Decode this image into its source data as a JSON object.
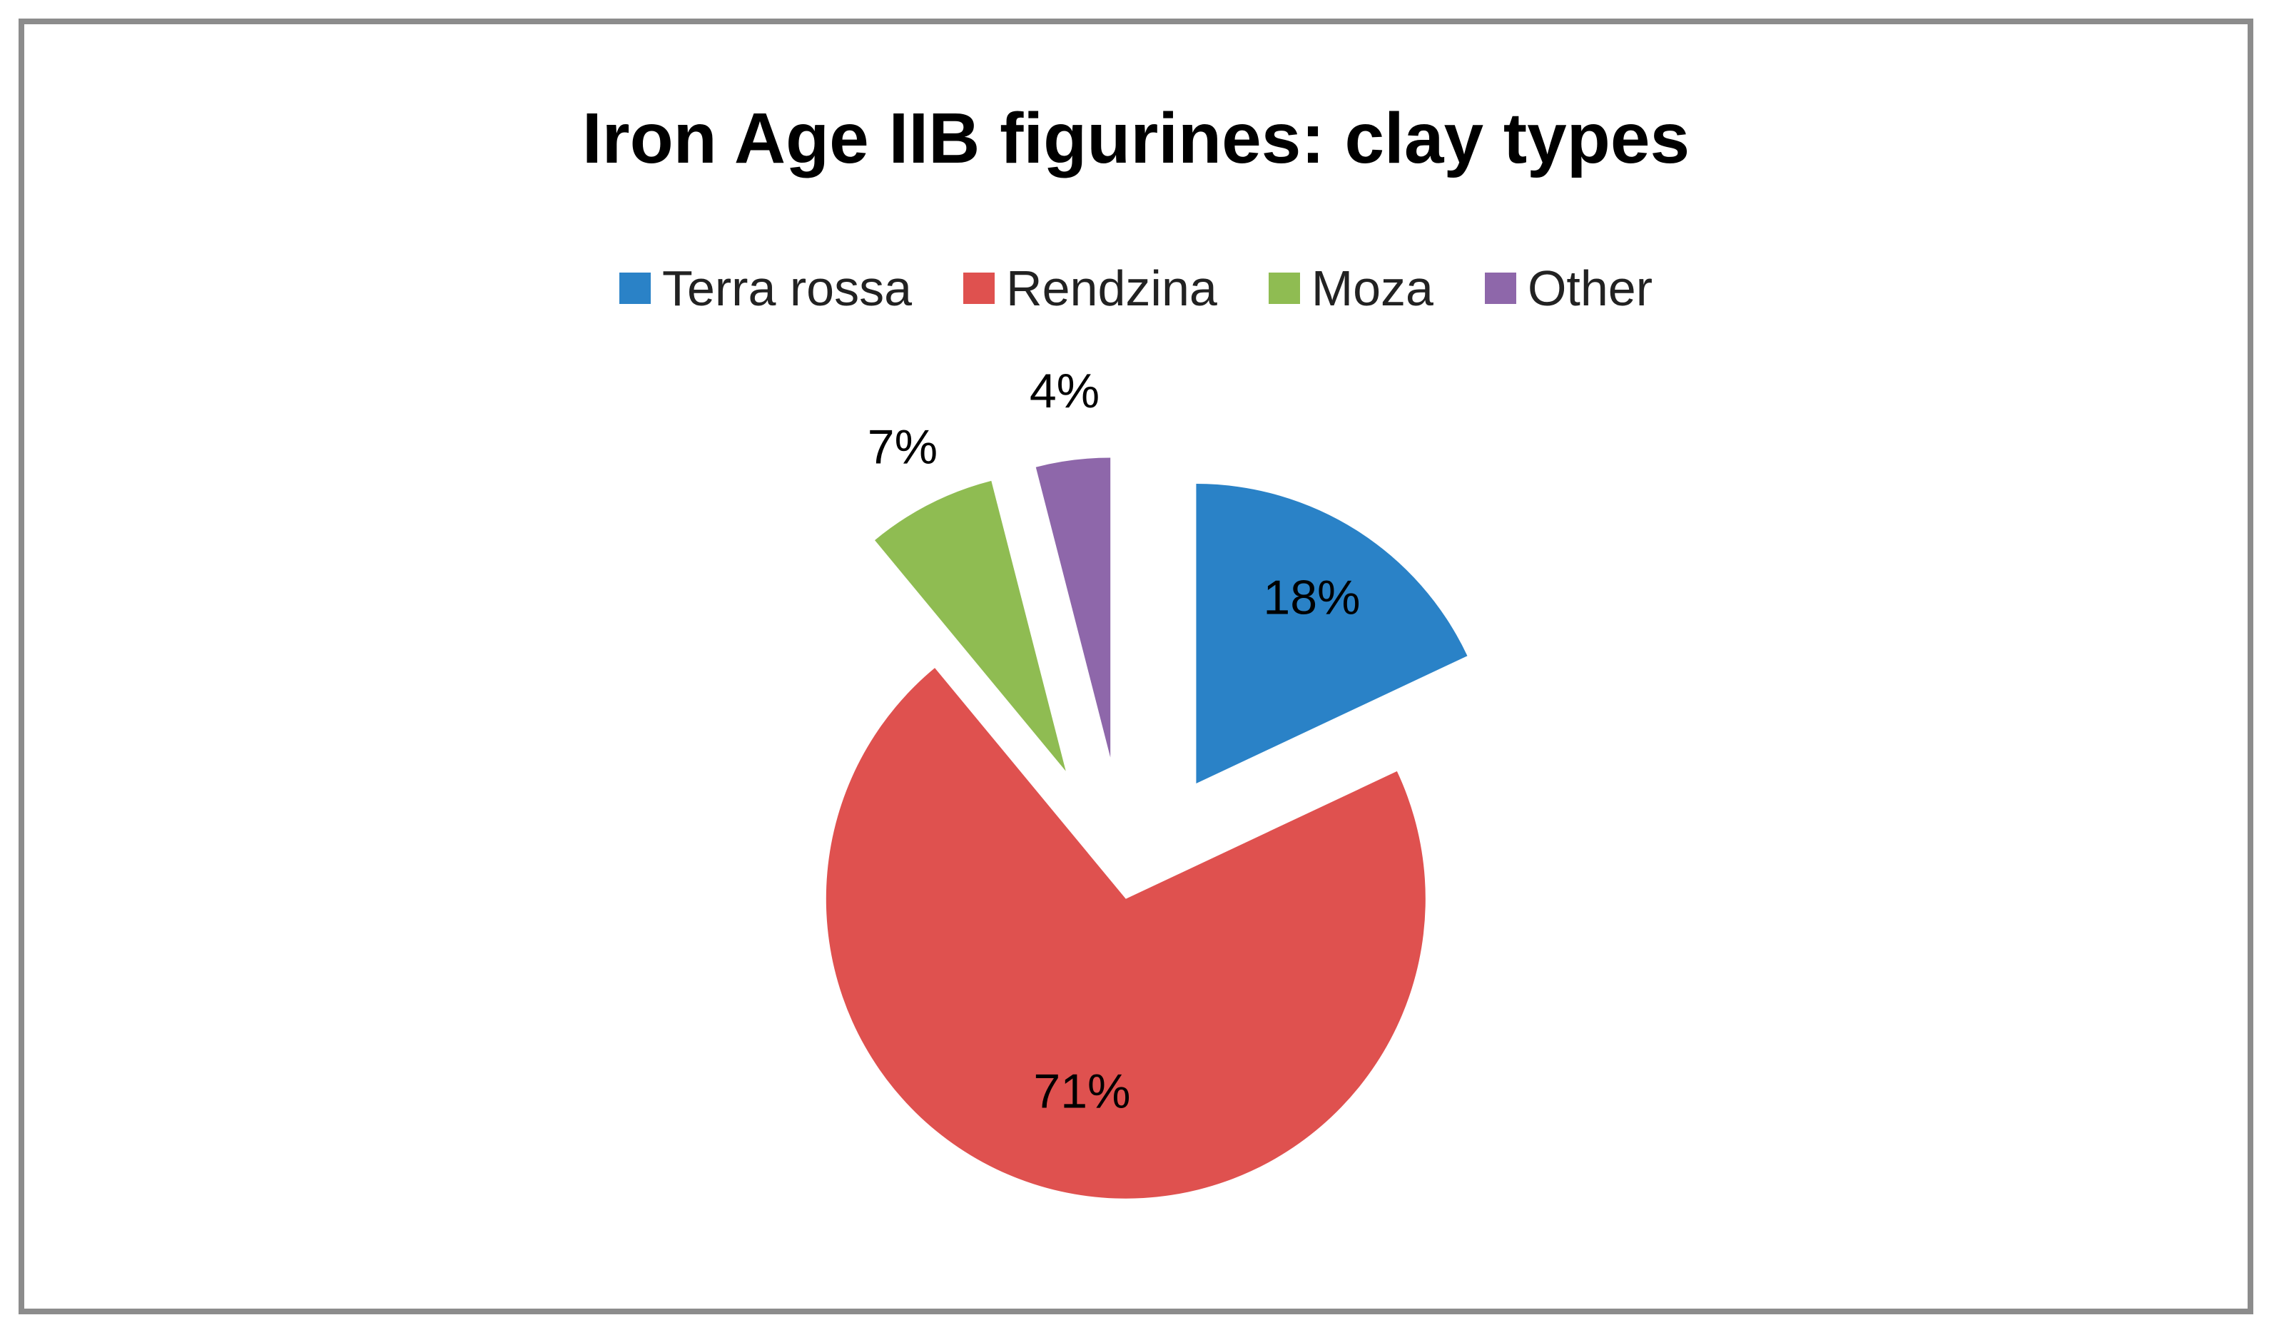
{
  "chart_data": {
    "type": "pie",
    "title": "Iron Age IIB figurines: clay types",
    "legend_position": "top",
    "exploded": true,
    "slices": [
      {
        "name": "Terra rossa",
        "value": 18,
        "label": "18%",
        "color": "#2a82c7"
      },
      {
        "name": "Rendzina",
        "value": 71,
        "label": "71%",
        "color": "#df514f"
      },
      {
        "name": "Moza",
        "value": 7,
        "label": "7%",
        "color": "#8fbc52"
      },
      {
        "name": "Other",
        "value": 4,
        "label": "4%",
        "color": "#8e67aa"
      }
    ]
  }
}
